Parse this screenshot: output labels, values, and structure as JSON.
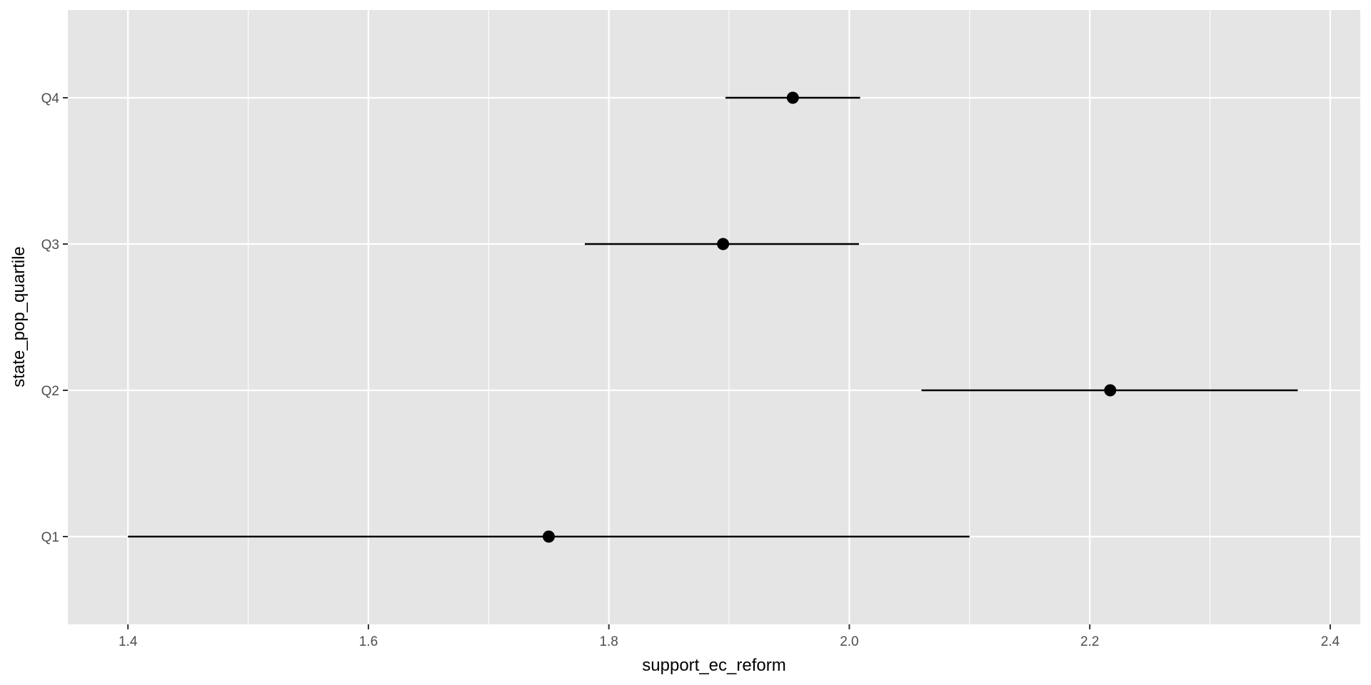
{
  "chart_data": {
    "type": "scatter",
    "subtype": "pointrange",
    "title": "",
    "xlabel": "support_ec_reform",
    "ylabel": "state_pop_quartile",
    "categories": [
      "Q1",
      "Q2",
      "Q3",
      "Q4"
    ],
    "points": [
      {
        "category": "Q1",
        "x": 1.75,
        "xmin": 1.4,
        "xmax": 2.1
      },
      {
        "category": "Q2",
        "x": 2.217,
        "xmin": 2.06,
        "xmax": 2.373
      },
      {
        "category": "Q3",
        "x": 1.895,
        "xmin": 1.78,
        "xmax": 2.008
      },
      {
        "category": "Q4",
        "x": 1.953,
        "xmin": 1.897,
        "xmax": 2.009
      }
    ],
    "xlim": [
      1.35,
      2.425
    ],
    "xticks": [
      1.4,
      1.6,
      1.8,
      2.0,
      2.2,
      2.4
    ],
    "xtick_labels": [
      "1.4",
      "1.6",
      "1.8",
      "2.0",
      "2.2",
      "2.4"
    ],
    "x_minor_gridlines": [
      1.5,
      1.7,
      1.9,
      2.1,
      2.3
    ],
    "grid": true,
    "legend": "none",
    "colors": {
      "panel_background": "#e5e5e5",
      "gridline": "#ffffff",
      "point": "#000000",
      "tick_label": "#4d4d4d",
      "tick_mark": "#333333"
    }
  }
}
